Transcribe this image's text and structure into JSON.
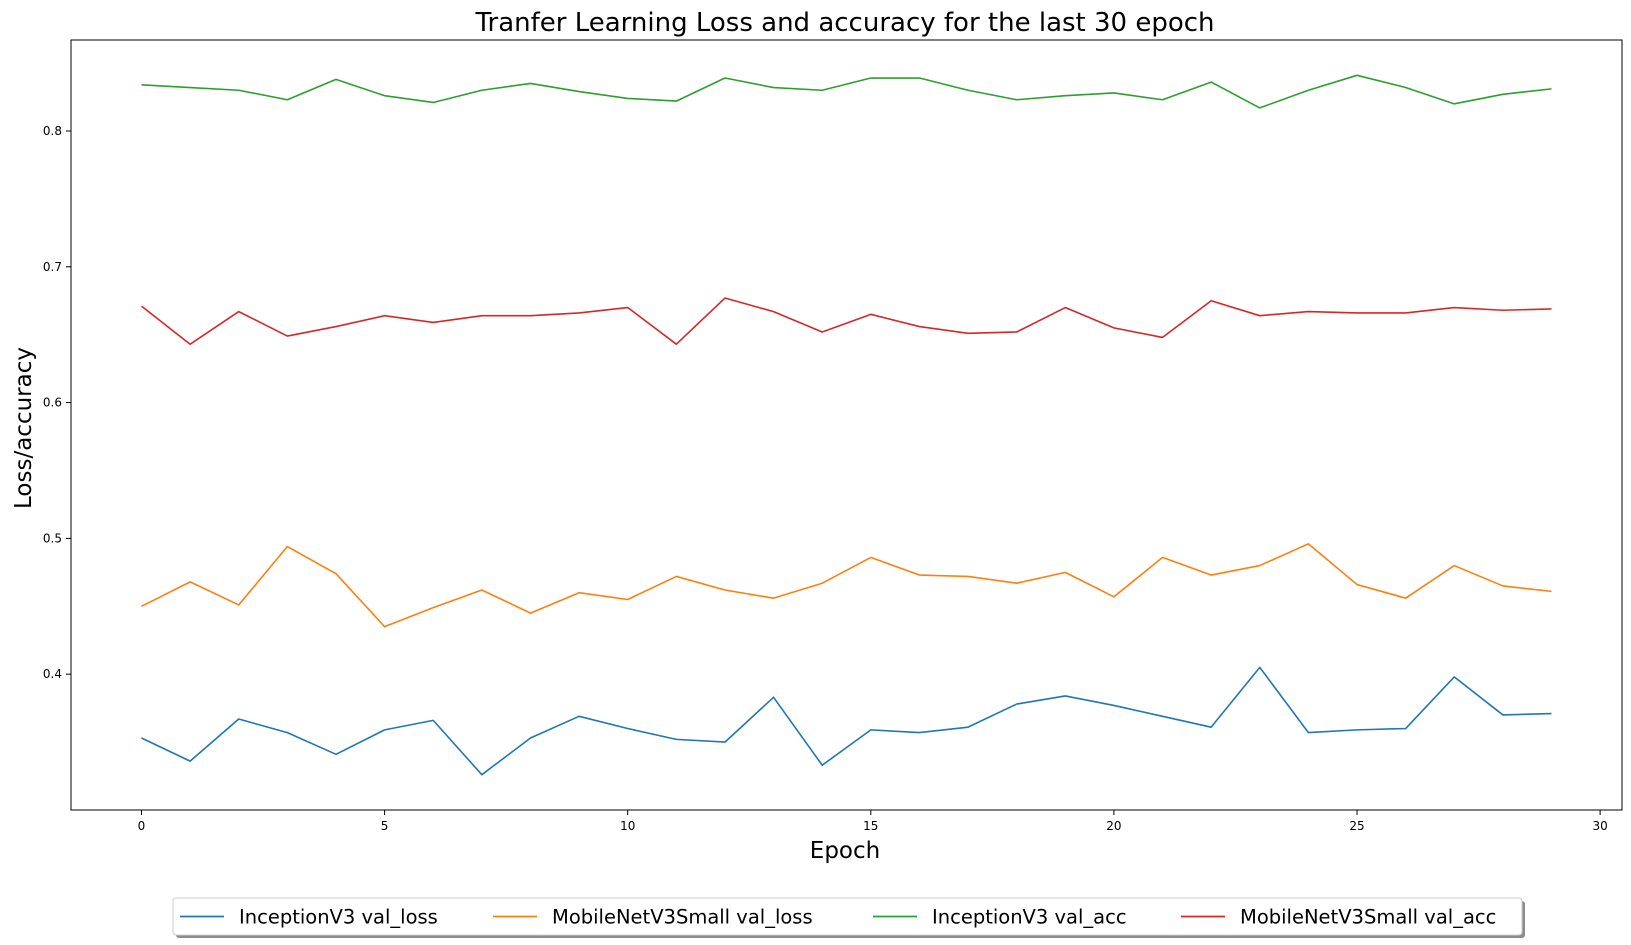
{
  "chart_data": {
    "type": "line",
    "title": "Tranfer Learning Loss and accuracy for the last 30 epoch",
    "xlabel": "Epoch",
    "ylabel": "Loss/accuracy",
    "xlim": [
      -1.45,
      30.45
    ],
    "ylim": [
      0.3,
      0.867
    ],
    "xticks": [
      0,
      5,
      10,
      15,
      20,
      25,
      30
    ],
    "xtick_labels": [
      "0",
      "5",
      "10",
      "15",
      "20",
      "25",
      "30"
    ],
    "yticks": [
      0.4,
      0.5,
      0.6,
      0.7,
      0.8
    ],
    "ytick_labels": [
      "0.4",
      "0.5",
      "0.6",
      "0.7",
      "0.8"
    ],
    "grid": false,
    "legend_placement": "bottom-center, below plot, 4 columns, with shadow",
    "x": [
      0,
      1,
      2,
      3,
      4,
      5,
      6,
      7,
      8,
      9,
      10,
      11,
      12,
      13,
      14,
      15,
      16,
      17,
      18,
      19,
      20,
      21,
      22,
      23,
      24,
      25,
      26,
      27,
      28,
      29
    ],
    "series": [
      {
        "name": "InceptionV3 val_loss",
        "color": "#1f77b4",
        "values": [
          0.353,
          0.336,
          0.367,
          0.357,
          0.341,
          0.359,
          0.366,
          0.326,
          0.353,
          0.369,
          0.36,
          0.352,
          0.35,
          0.383,
          0.333,
          0.359,
          0.357,
          0.361,
          0.378,
          0.384,
          0.377,
          0.369,
          0.361,
          0.405,
          0.357,
          0.359,
          0.36,
          0.398,
          0.37,
          0.371
        ]
      },
      {
        "name": "MobileNetV3Small val_loss",
        "color": "#ff7f0e",
        "values": [
          0.45,
          0.468,
          0.451,
          0.494,
          0.474,
          0.435,
          0.449,
          0.462,
          0.445,
          0.46,
          0.455,
          0.472,
          0.462,
          0.456,
          0.467,
          0.486,
          0.473,
          0.472,
          0.467,
          0.475,
          0.457,
          0.486,
          0.473,
          0.48,
          0.496,
          0.466,
          0.456,
          0.48,
          0.465,
          0.461
        ]
      },
      {
        "name": "InceptionV3 val_acc",
        "color": "#2ca02c",
        "values": [
          0.834,
          0.832,
          0.83,
          0.823,
          0.838,
          0.826,
          0.821,
          0.83,
          0.835,
          0.829,
          0.824,
          0.822,
          0.839,
          0.832,
          0.83,
          0.839,
          0.839,
          0.83,
          0.823,
          0.826,
          0.828,
          0.823,
          0.836,
          0.817,
          0.83,
          0.841,
          0.832,
          0.82,
          0.827,
          0.831
        ]
      },
      {
        "name": "MobileNetV3Small val_acc",
        "color": "#d62728",
        "values": [
          0.671,
          0.643,
          0.667,
          0.649,
          0.656,
          0.664,
          0.659,
          0.664,
          0.664,
          0.666,
          0.67,
          0.643,
          0.677,
          0.667,
          0.652,
          0.665,
          0.656,
          0.651,
          0.652,
          0.67,
          0.655,
          0.648,
          0.675,
          0.664,
          0.667,
          0.666,
          0.666,
          0.67,
          0.668,
          0.669
        ]
      }
    ]
  }
}
